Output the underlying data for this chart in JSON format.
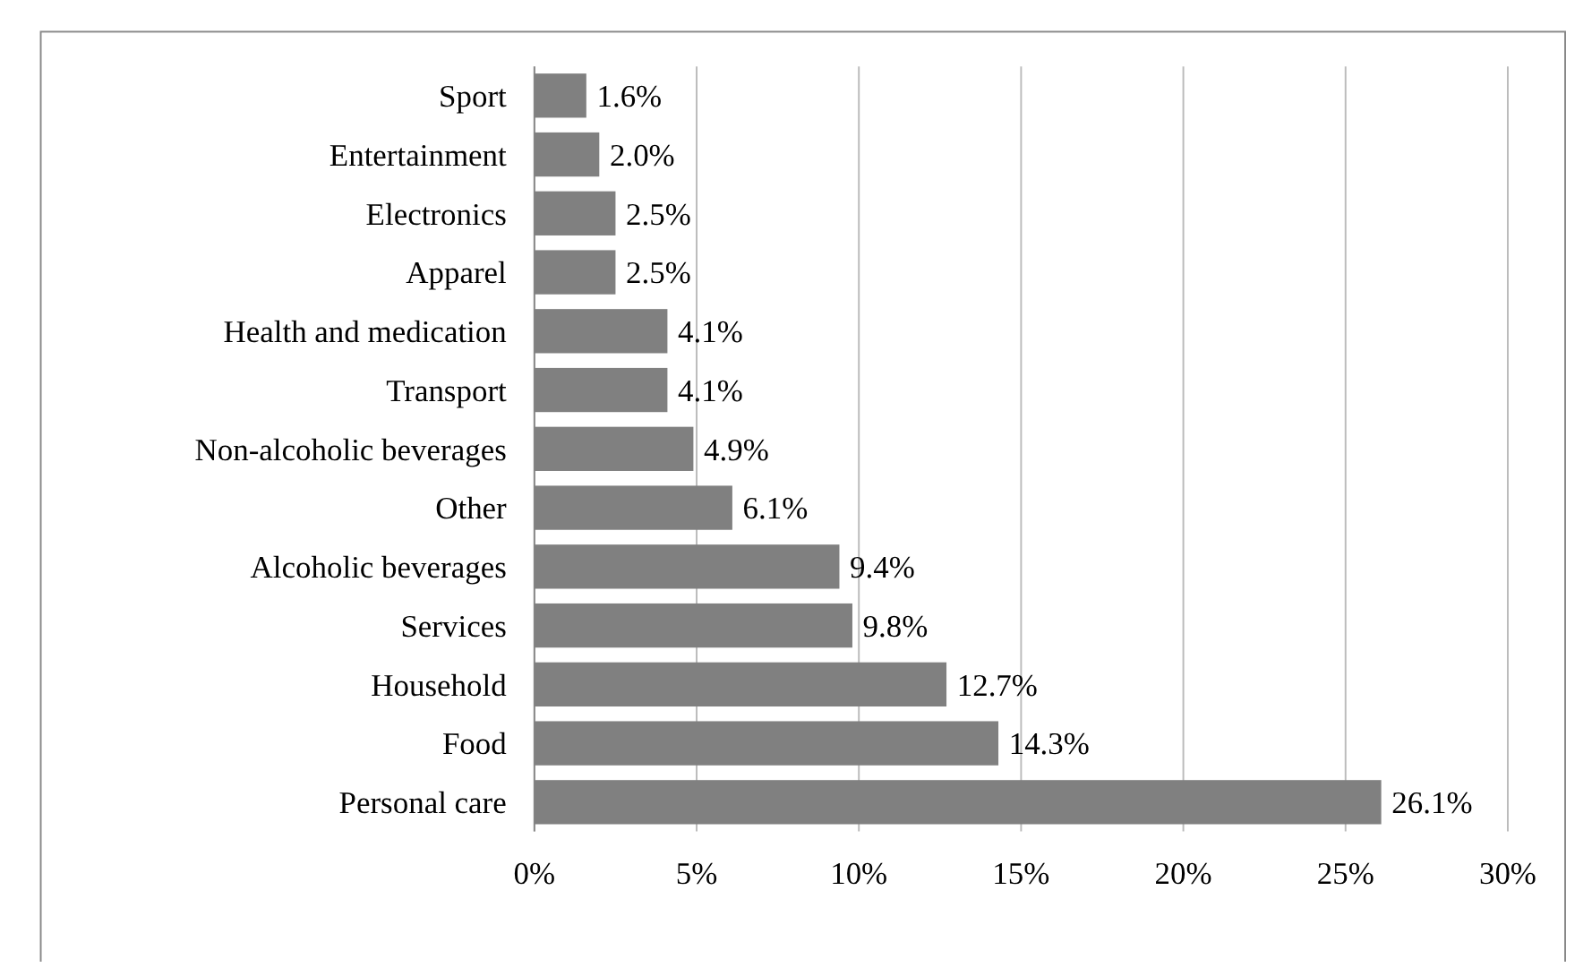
{
  "chart_data": {
    "type": "bar",
    "orientation": "horizontal",
    "categories": [
      "Sport",
      "Entertainment",
      "Electronics",
      "Apparel",
      "Health and medication",
      "Transport",
      "Non-alcoholic beverages",
      "Other",
      "Alcoholic beverages",
      "Services",
      "Household",
      "Food",
      "Personal care"
    ],
    "values": [
      1.6,
      2.0,
      2.5,
      2.5,
      4.1,
      4.1,
      4.9,
      6.1,
      9.4,
      9.8,
      12.7,
      14.3,
      26.1
    ],
    "value_labels": [
      "1.6%",
      "2.0%",
      "2.5%",
      "2.5%",
      "4.1%",
      "4.1%",
      "4.9%",
      "6.1%",
      "9.4%",
      "9.8%",
      "12.7%",
      "14.3%",
      "26.1%"
    ],
    "color": "#808080",
    "xlim": [
      0,
      30
    ],
    "xticks": [
      {
        "value": 0,
        "label": "0%"
      },
      {
        "value": 5,
        "label": "5%"
      },
      {
        "value": 10,
        "label": "10%"
      },
      {
        "value": 15,
        "label": "15%"
      },
      {
        "value": 20,
        "label": "20%"
      },
      {
        "value": 25,
        "label": "25%"
      },
      {
        "value": 30,
        "label": "30%"
      }
    ],
    "grid": "x"
  }
}
